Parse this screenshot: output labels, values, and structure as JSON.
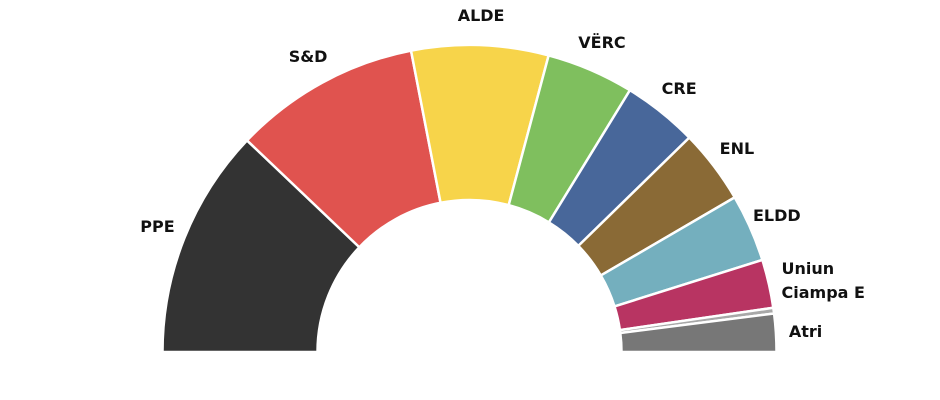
{
  "chart_data": {
    "type": "semicircle-donut",
    "categories": [
      "PPE",
      "S&D",
      "ALDE",
      "VËRC",
      "CRE",
      "ENL",
      "ELDD",
      "Uniun Ciampa E",
      null,
      "Atri"
    ],
    "values": [
      24.2,
      19.7,
      14.4,
      9.2,
      7.9,
      7.8,
      7.1,
      5.1,
      0.6,
      4.0
    ],
    "colors": [
      "#333333",
      "#e0534f",
      "#f7d44a",
      "#7fbf5e",
      "#48679a",
      "#8a6a36",
      "#74afbe",
      "#b83462",
      "#a8a8a8",
      "#777777"
    ]
  }
}
